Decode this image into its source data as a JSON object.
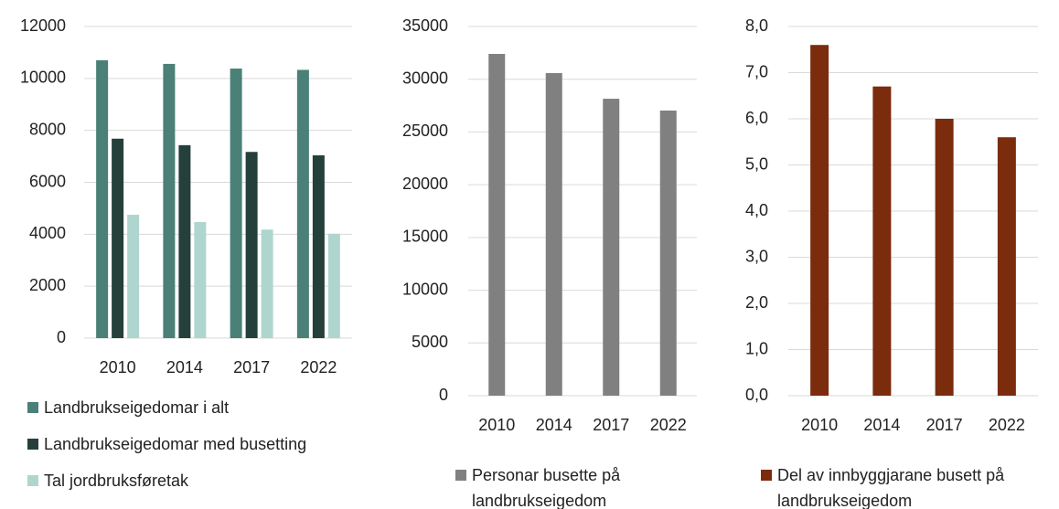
{
  "chart_data": [
    {
      "type": "bar",
      "categories": [
        "2010",
        "2014",
        "2017",
        "2022"
      ],
      "series": [
        {
          "name": "Landbrukseigedomar i alt",
          "color": "#4a8077",
          "values": [
            10700,
            10560,
            10380,
            10330
          ]
        },
        {
          "name": "Landbrukseigedomar med busetting",
          "color": "#25403b",
          "values": [
            7680,
            7430,
            7170,
            7040
          ]
        },
        {
          "name": "Tal jordbruksføretak",
          "color": "#aed6cf",
          "values": [
            4750,
            4470,
            4180,
            4020
          ]
        }
      ],
      "ylim": [
        0,
        12000
      ],
      "yticks": [
        0,
        2000,
        4000,
        6000,
        8000,
        10000,
        12000
      ],
      "grid": true
    },
    {
      "type": "bar",
      "categories": [
        "2010",
        "2014",
        "2017",
        "2022"
      ],
      "series": [
        {
          "name": "Personar busette på landbrukseigedom",
          "color": "#808080",
          "values": [
            32400,
            30580,
            28150,
            27030
          ]
        }
      ],
      "ylim": [
        0,
        35000
      ],
      "yticks": [
        0,
        5000,
        10000,
        15000,
        20000,
        25000,
        30000,
        35000
      ],
      "grid": true
    },
    {
      "type": "bar",
      "categories": [
        "2010",
        "2014",
        "2017",
        "2022"
      ],
      "series": [
        {
          "name": "Del av innbyggjarane busett på landbrukseigedom",
          "color": "#7b2c0d",
          "values": [
            7.6,
            6.7,
            6.0,
            5.6
          ]
        }
      ],
      "ylim": [
        0,
        8
      ],
      "yticks": [
        {
          "value": 0,
          "label": "0,0"
        },
        {
          "value": 1,
          "label": "1,0"
        },
        {
          "value": 2,
          "label": "2,0"
        },
        {
          "value": 3,
          "label": "3,0"
        },
        {
          "value": 4,
          "label": "4,0"
        },
        {
          "value": 5,
          "label": "5,0"
        },
        {
          "value": 6,
          "label": "6,0"
        },
        {
          "value": 7,
          "label": "7,0"
        },
        {
          "value": 8,
          "label": "8,0"
        }
      ],
      "grid": true
    }
  ]
}
